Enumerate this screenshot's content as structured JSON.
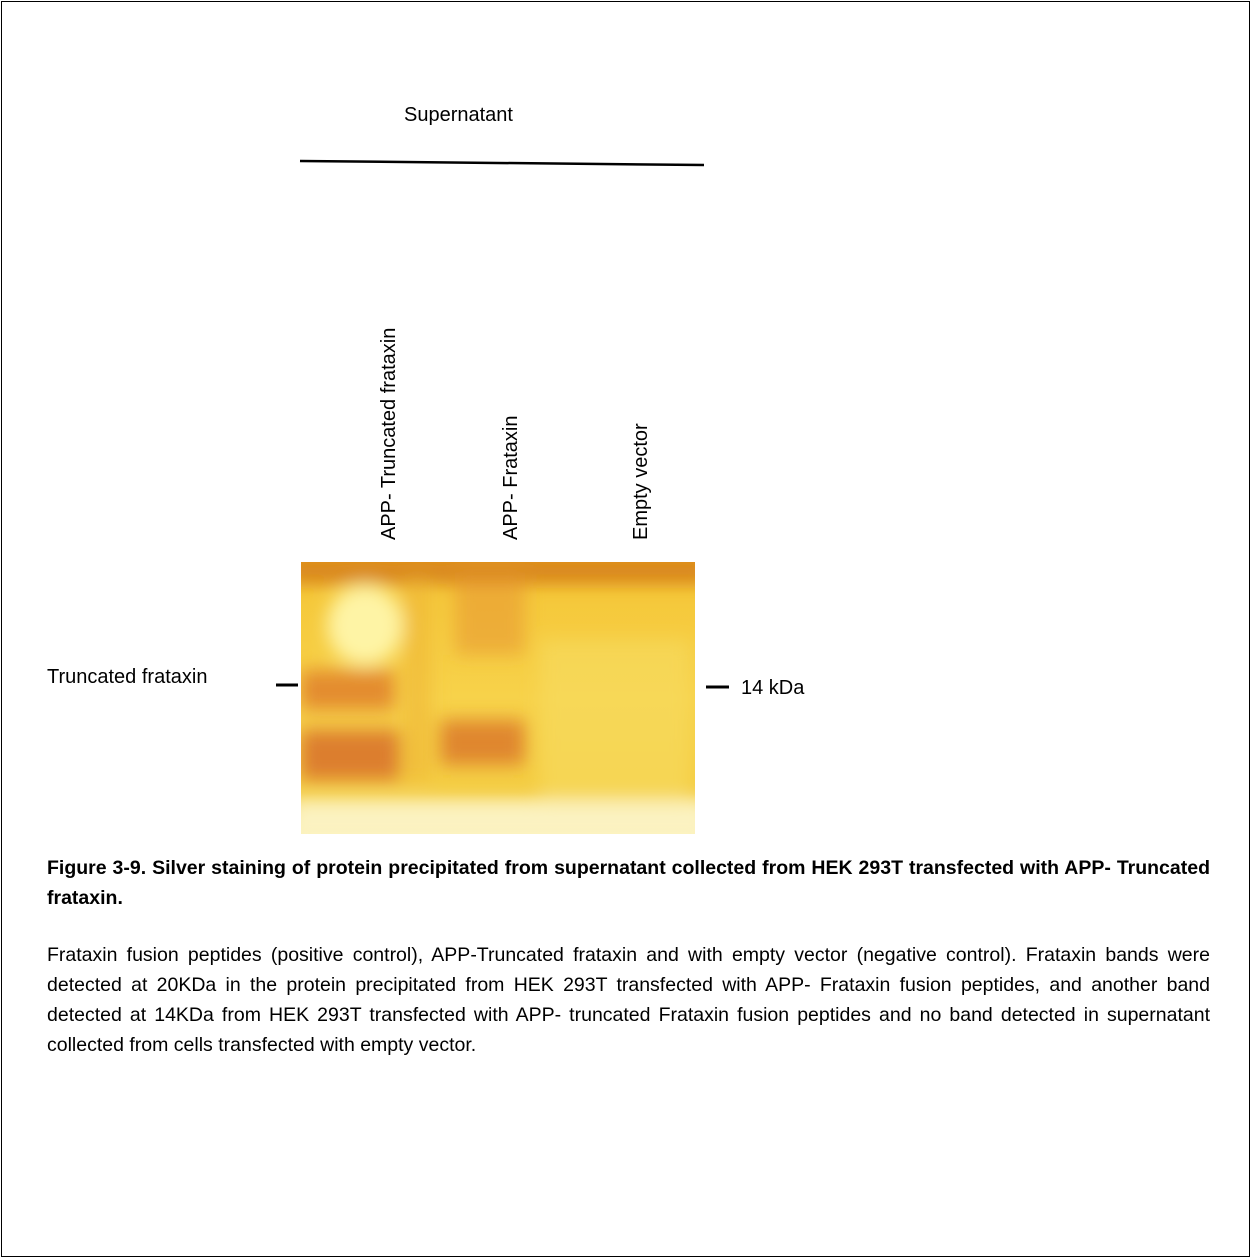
{
  "figure": {
    "group_label": "Supernatant",
    "lanes": [
      "APP- Truncated frataxin",
      "APP- Frataxin",
      "Empty vector"
    ],
    "left_label": "Truncated frataxin",
    "marker_label": "14 kDa",
    "caption_title": "Figure 3-9. Silver staining of protein precipitated from supernatant collected from HEK 293T transfected with APP- Truncated frataxin.",
    "caption_body": "Frataxin fusion peptides (positive control), APP-Truncated frataxin and with empty vector (negative control). Frataxin bands were detected at 20KDa in the protein precipitated from  HEK 293T transfected with APP- Frataxin fusion peptides, and another band detected at 14KDa from  HEK 293T transfected with APP- truncated Frataxin fusion peptides and no band detected in supernatant collected from cells transfected with empty vector."
  }
}
